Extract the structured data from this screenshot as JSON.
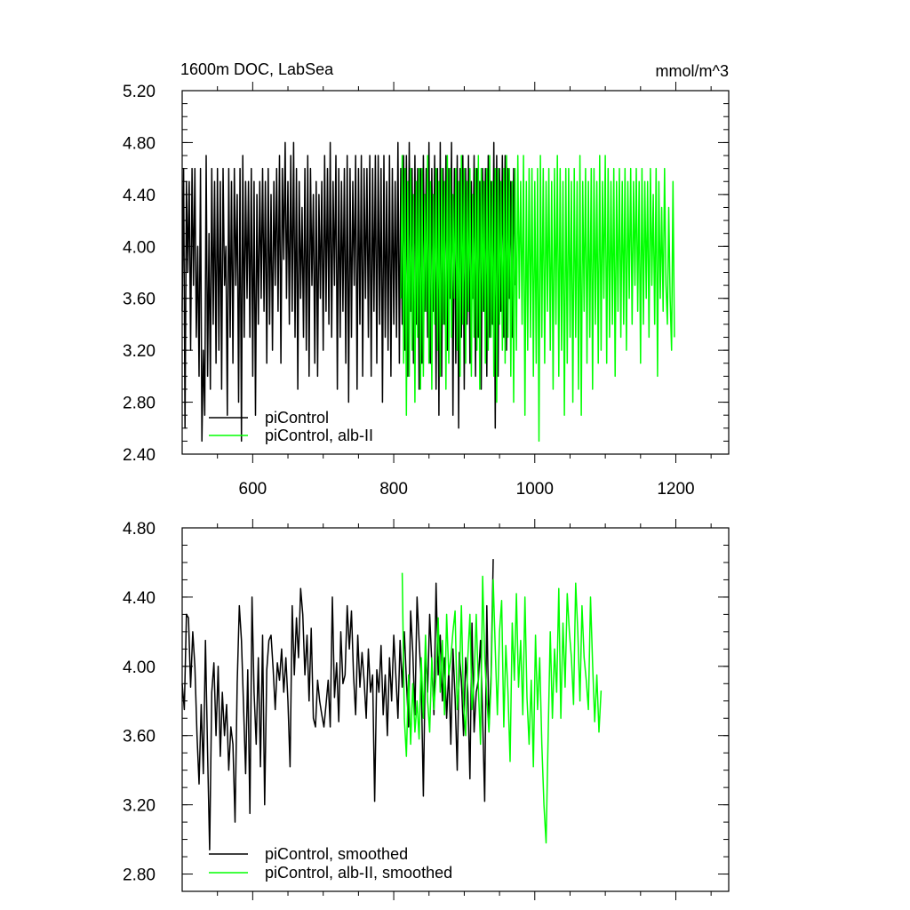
{
  "chart_data": [
    {
      "type": "line",
      "title": "1600m DOC, LabSea",
      "units": "mmol/m^3",
      "xlim": [
        500,
        1275
      ],
      "ylim": [
        2.4,
        5.2
      ],
      "x_ticks": [
        600,
        800,
        1000,
        1200
      ],
      "x_tick_labels": [
        "600",
        "800",
        "1000",
        "1200"
      ],
      "y_ticks": [
        2.4,
        2.8,
        3.2,
        3.6,
        4.0,
        4.4,
        4.8,
        5.2
      ],
      "y_tick_labels": [
        "2.40",
        "2.80",
        "3.20",
        "3.60",
        "4.00",
        "4.40",
        "4.80",
        "5.20"
      ],
      "grid": false,
      "legend_position": "bottom-left",
      "series": [
        {
          "name": "piControl",
          "color": "#000000",
          "x_start": 500,
          "x_step": 2,
          "values": [
            3.5,
            4.6,
            2.6,
            4.5,
            3.8,
            4.5,
            3.2,
            4.6,
            3.7,
            4.6,
            3.3,
            4.0,
            3.0,
            4.6,
            2.5,
            3.2,
            2.7,
            4.7,
            3.0,
            4.1,
            2.9,
            4.6,
            3.4,
            4.5,
            3.1,
            4.6,
            3.2,
            4.5,
            2.9,
            4.6,
            3.7,
            4.0,
            2.7,
            4.6,
            3.3,
            4.5,
            3.1,
            4.6,
            3.7,
            4.4,
            2.8,
            4.6,
            2.5,
            4.7,
            3.3,
            4.5,
            3.6,
            4.5,
            3.3,
            4.6,
            3.0,
            4.5,
            2.7,
            4.4,
            3.4,
            4.5,
            3.6,
            4.6,
            3.5,
            4.5,
            3.1,
            4.6,
            3.4,
            4.4,
            3.2,
            4.5,
            3.7,
            4.6,
            3.5,
            4.7,
            3.1,
            4.6,
            3.9,
            4.8,
            3.6,
            4.5,
            3.4,
            4.7,
            3.5,
            4.8,
            3.3,
            4.6,
            2.9,
            4.5,
            3.6,
            4.3,
            3.3,
            4.6,
            3.2,
            4.7,
            3.0,
            4.6,
            3.7,
            4.4,
            3.1,
            4.5,
            3.0,
            4.4,
            3.6,
            4.5,
            3.2,
            4.7,
            3.5,
            4.6,
            3.4,
            4.8,
            3.3,
            4.5,
            3.7,
            4.7,
            2.9,
            4.6,
            3.3,
            4.5,
            3.5,
            4.6,
            3.1,
            4.7,
            2.8,
            4.6,
            3.3,
            4.5,
            3.7,
            4.7,
            2.9,
            4.6,
            3.4,
            4.7,
            3.0,
            4.6,
            3.6,
            4.6,
            3.3,
            4.7,
            3.0,
            4.6,
            3.5,
            4.7,
            3.1,
            4.7,
            3.4,
            4.6,
            2.8,
            4.7,
            3.3,
            4.5,
            3.2,
            4.7,
            3.0,
            4.6,
            3.4,
            4.5,
            3.3,
            4.8,
            3.1,
            4.6,
            3.4,
            4.7,
            3.2,
            4.7,
            3.0,
            4.8,
            3.5,
            4.6,
            3.1,
            4.7,
            3.4,
            4.6,
            2.9,
            4.6,
            3.1,
            4.7,
            3.5,
            4.6,
            3.3,
            4.8,
            3.1,
            4.6,
            3.5,
            4.7,
            2.9,
            4.6,
            2.7,
            4.8,
            3.0,
            4.6,
            3.4,
            4.7,
            3.2,
            4.6,
            3.6,
            4.8,
            2.7,
            4.6,
            3.1,
            4.7,
            2.6,
            4.6,
            3.3,
            4.7,
            2.9,
            4.6,
            3.4,
            4.7,
            3.1,
            4.5,
            3.6,
            4.7,
            3.0,
            4.6,
            3.3,
            4.5,
            2.9,
            4.6,
            3.5,
            4.6,
            3.0,
            4.7,
            3.3,
            4.5,
            3.4,
            4.8,
            2.6,
            4.7,
            3.0,
            4.6,
            3.5,
            4.7,
            3.3,
            4.7,
            3.2,
            4.6,
            3.6,
            4.5,
            3.3,
            4.6,
            3.7
          ]
        },
        {
          "name": "piControl, alb-II",
          "color": "#00ff00",
          "x_start": 810,
          "x_step": 2,
          "values": [
            3.6,
            4.7,
            3.1,
            4.6,
            2.7,
            4.5,
            3.0,
            4.6,
            3.2,
            4.4,
            2.8,
            4.5,
            3.3,
            4.6,
            2.9,
            4.6,
            3.0,
            4.4,
            3.5,
            4.7,
            3.1,
            4.5,
            2.9,
            4.4,
            3.4,
            4.6,
            3.2,
            4.5,
            3.0,
            4.6,
            3.4,
            4.5,
            2.9,
            4.7,
            3.1,
            4.6,
            3.3,
            4.4,
            3.6,
            4.6,
            3.2,
            4.5,
            3.0,
            4.7,
            3.4,
            4.6,
            3.1,
            4.5,
            3.5,
            4.6,
            3.0,
            4.4,
            3.3,
            4.6,
            3.2,
            4.7,
            2.9,
            4.6,
            3.5,
            4.5,
            3.1,
            4.6,
            3.2,
            4.7,
            3.3,
            4.5,
            3.0,
            4.6,
            2.8,
            4.6,
            3.4,
            4.5,
            3.2,
            4.6,
            3.1,
            4.7,
            3.3,
            4.6,
            3.0,
            4.5,
            2.8,
            4.6,
            3.2,
            4.7,
            3.6,
            4.5,
            3.4,
            4.7,
            2.7,
            4.5,
            3.2,
            4.6,
            3.3,
            4.6,
            3.0,
            4.5,
            3.1,
            4.6,
            2.5,
            4.7,
            3.3,
            4.6,
            3.1,
            4.5,
            3.5,
            4.6,
            3.2,
            4.5,
            2.9,
            4.6,
            3.4,
            4.7,
            3.0,
            4.6,
            3.2,
            4.5,
            2.7,
            4.6,
            3.1,
            4.6,
            3.3,
            4.5,
            2.8,
            4.6,
            3.3,
            4.5,
            2.9,
            4.7,
            2.7,
            4.5,
            3.5,
            4.6,
            3.1,
            4.5,
            3.3,
            4.6,
            2.9,
            4.6,
            3.4,
            4.5,
            3.1,
            4.7,
            3.2,
            4.5,
            3.6,
            4.7,
            3.1,
            4.6,
            3.3,
            4.5,
            3.4,
            4.6,
            3.0,
            4.5,
            3.5,
            4.6,
            3.3,
            4.5,
            3.4,
            4.6,
            3.2,
            4.5,
            3.6,
            4.6,
            3.4,
            4.5,
            3.7,
            4.6,
            3.5,
            4.5,
            3.1,
            4.6,
            3.4,
            4.5,
            3.6,
            4.5,
            3.3,
            4.6,
            3.7,
            4.4,
            3.4,
            4.6,
            3.0,
            4.5,
            3.6,
            4.3,
            3.5,
            4.6,
            3.7,
            3.4,
            4.3,
            3.6,
            3.2,
            4.5,
            3.3
          ]
        }
      ]
    },
    {
      "type": "line",
      "title": "",
      "xlim": [
        500,
        1275
      ],
      "ylim": [
        2.7,
        4.8
      ],
      "x_ticks": [
        600,
        800,
        1000,
        1200
      ],
      "y_ticks": [
        2.8,
        3.2,
        3.6,
        4.0,
        4.4,
        4.8
      ],
      "y_tick_labels": [
        "2.80",
        "3.20",
        "3.60",
        "4.00",
        "4.40",
        "4.80"
      ],
      "grid": false,
      "legend_position": "bottom-left",
      "series": [
        {
          "name": "piControl, smoothed",
          "color": "#000000",
          "x_start": 500,
          "x_step": 3,
          "values": [
            3.9,
            3.75,
            4.3,
            4.28,
            3.88,
            4.2,
            4.0,
            3.6,
            3.32,
            3.78,
            3.38,
            4.15,
            3.5,
            2.94,
            3.85,
            4.02,
            3.6,
            4.0,
            3.48,
            3.85,
            3.6,
            3.78,
            3.4,
            3.65,
            3.55,
            3.1,
            3.9,
            4.35,
            4.15,
            3.78,
            3.38,
            3.98,
            3.15,
            4.4,
            3.85,
            3.55,
            4.05,
            3.42,
            4.18,
            3.2,
            3.98,
            4.15,
            4.18,
            3.98,
            3.75,
            4.02,
            3.92,
            4.1,
            3.85,
            4.05,
            3.8,
            3.42,
            4.35,
            3.95,
            4.28,
            4.05,
            4.45,
            4.3,
            3.95,
            4.18,
            3.8,
            4.22,
            3.7,
            3.65,
            3.92,
            3.8,
            3.72,
            3.65,
            3.78,
            3.92,
            3.65,
            4.4,
            3.82,
            4.02,
            3.68,
            4.2,
            3.9,
            3.95,
            4.35,
            4.1,
            4.32,
            3.95,
            3.72,
            4.18,
            3.88,
            4.08,
            3.92,
            3.7,
            4.1,
            3.85,
            3.95,
            3.22,
            3.98,
            3.85,
            4.12,
            3.72,
            3.95,
            3.6,
            4.05,
            3.8,
            4.18,
            3.95,
            3.7,
            4.15,
            3.88,
            4.2,
            3.92,
            3.65,
            4.32,
            4.08,
            3.72,
            4.4,
            4.15,
            3.92,
            3.25,
            4.1,
            3.85,
            4.3,
            4.02,
            3.72,
            4.48,
            3.95,
            4.18,
            3.8,
            4.05,
            3.7,
            3.98,
            3.55,
            4.1,
            3.82,
            3.4,
            4.08,
            3.92,
            3.6,
            4.05,
            3.85,
            3.35,
            4.25,
            3.62,
            3.85,
            3.92,
            4.15,
            3.7,
            3.22,
            4.35,
            3.65,
            3.95,
            4.62
          ]
        },
        {
          "name": "piControl, alb-II, smoothed",
          "color": "#00ff00",
          "x_start": 812,
          "x_step": 3,
          "values": [
            4.54,
            3.7,
            3.48,
            3.95,
            3.55,
            3.9,
            3.62,
            3.8,
            3.58,
            4.05,
            3.7,
            4.18,
            3.8,
            3.62,
            4.05,
            3.75,
            3.95,
            4.28,
            3.85,
            4.15,
            3.72,
            4.3,
            3.95,
            4.05,
            4.2,
            4.32,
            3.75,
            3.92,
            4.35,
            3.78,
            3.6,
            4.05,
            4.3,
            3.75,
            3.92,
            4.3,
            3.88,
            3.55,
            4.52,
            4.05,
            3.82,
            3.62,
            3.9,
            4.5,
            4.1,
            3.72,
            4.2,
            4.38,
            3.65,
            4.12,
            3.85,
            3.45,
            4.25,
            3.92,
            4.42,
            3.88,
            4.15,
            3.72,
            4.4,
            3.82,
            3.55,
            3.92,
            3.42,
            4.18,
            3.75,
            4.05,
            3.55,
            3.2,
            2.98,
            3.62,
            4.2,
            3.7,
            4.1,
            3.85,
            4.45,
            3.7,
            4.25,
            3.88,
            4.42,
            4.2,
            4.05,
            3.78,
            4.48,
            4.2,
            3.8,
            4.35,
            4.05,
            3.92,
            3.75,
            4.4,
            4.02,
            3.68,
            3.95,
            3.62,
            3.86
          ]
        }
      ]
    }
  ]
}
